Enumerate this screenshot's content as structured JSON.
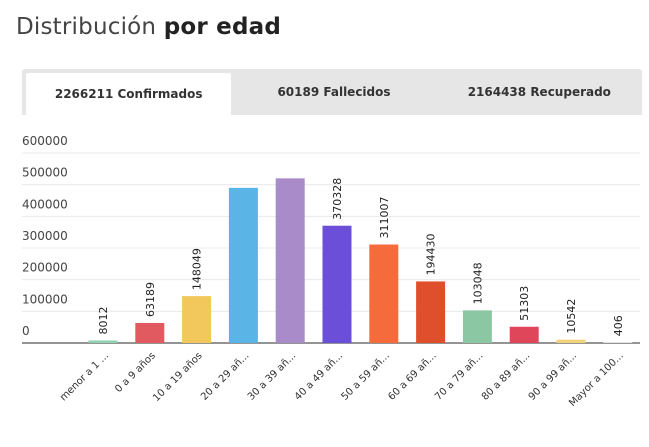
{
  "header": {
    "title_regular": "Distribución",
    "title_bold": "por edad"
  },
  "tabs": [
    {
      "label": "2266211 Confirmados",
      "active": true
    },
    {
      "label": "60189 Fallecidos",
      "active": false
    },
    {
      "label": "2164438 Recuperado",
      "active": false
    }
  ],
  "chart_data": {
    "type": "bar",
    "title": "",
    "xlabel": "",
    "ylabel": "",
    "ylim": [
      0,
      600000
    ],
    "yticks": [
      0,
      100000,
      200000,
      300000,
      400000,
      500000,
      600000
    ],
    "grid": true,
    "categories": [
      "menor a 1 ...",
      "0 a 9 años",
      "10 a 19 años",
      "20 a 29 añ...",
      "30 a 39 añ...",
      "40 a 49 añ...",
      "50 a 59 añ...",
      "60 a 69 añ...",
      "70 a 79 añ...",
      "80 a 89 añ...",
      "90 a 99 añ...",
      "Mayor a 100..."
    ],
    "values": [
      8012,
      63189,
      148049,
      490000,
      520000,
      370328,
      311007,
      194430,
      103048,
      51303,
      10542,
      406
    ],
    "data_labels": [
      "8012",
      "63189",
      "148049",
      "",
      "",
      "370328",
      "311007",
      "194430",
      "103048",
      "51303",
      "10542",
      "406"
    ],
    "colors": [
      "#8fd1b0",
      "#e05a5f",
      "#f2c75c",
      "#5ab4e5",
      "#a98bc9",
      "#6b4fd9",
      "#f56b3c",
      "#e04f2b",
      "#8cc7a4",
      "#e0465a",
      "#f0d278",
      "#e6e6e6"
    ]
  }
}
